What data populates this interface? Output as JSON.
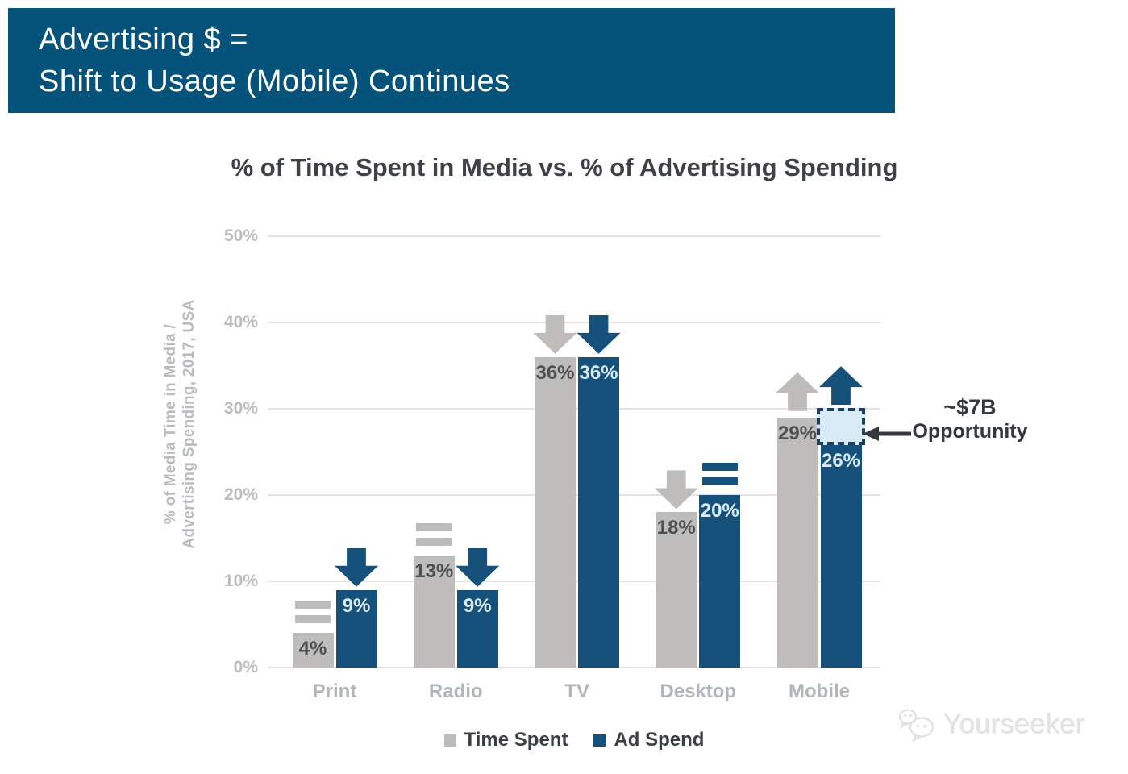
{
  "header": {
    "line1": "Advertising $ =",
    "line2": "Shift to Usage (Mobile) Continues"
  },
  "chart_data": {
    "type": "bar",
    "title": "% of Time Spent in Media vs. % of Advertising Spending",
    "ylabel": [
      "% of Media Time in Media /",
      "Advertising Spending, 2017, USA"
    ],
    "categories": [
      "Print",
      "Radio",
      "TV",
      "Desktop",
      "Mobile"
    ],
    "series": [
      {
        "name": "Time Spent",
        "color": "#bebdbb",
        "values": [
          4,
          13,
          36,
          18,
          29
        ],
        "labels": [
          "4%",
          "13%",
          "36%",
          "18%",
          "29%"
        ],
        "trend_markers": [
          "equal",
          "equal",
          "down",
          "down",
          "up"
        ]
      },
      {
        "name": "Ad Spend",
        "color": "#15517b",
        "values": [
          9,
          9,
          36,
          20,
          26
        ],
        "labels": [
          "9%",
          "9%",
          "36%",
          "20%",
          "26%"
        ],
        "trend_markers": [
          "down",
          "down",
          "down",
          "equal",
          "up"
        ]
      }
    ],
    "y_ticks": [
      {
        "value": 0,
        "label": "0%"
      },
      {
        "value": 10,
        "label": "10%"
      },
      {
        "value": 20,
        "label": "20%"
      },
      {
        "value": 30,
        "label": "30%"
      },
      {
        "value": 40,
        "label": "40%"
      },
      {
        "value": 50,
        "label": "50%"
      }
    ],
    "ylim": [
      0,
      50
    ],
    "grid": true,
    "legend_position": "bottom",
    "annotation": {
      "line1": "~$7B",
      "line2": "Opportunity",
      "category": "Mobile",
      "series": "Ad Spend",
      "box_range": [
        26,
        29.7
      ]
    }
  },
  "colors": {
    "header_bg": "#05537b",
    "bar_gray": "#bebdbb",
    "bar_blue": "#15517b",
    "gridline": "#e4e4e4",
    "label_on_gray": "#4e5052",
    "label_on_blue": "#d9ecf8",
    "opportunity_fill": "#d9ebf7",
    "opportunity_border": "#1f3f5d",
    "annotation_text": "#34383d"
  },
  "watermark": {
    "text": "Yourseeker"
  }
}
